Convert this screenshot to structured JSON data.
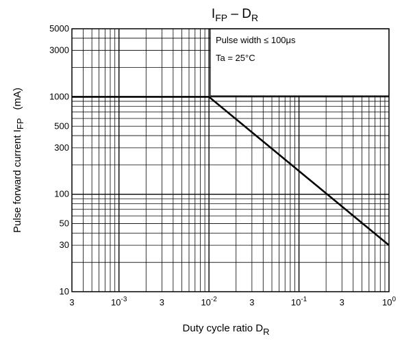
{
  "chart_data": {
    "type": "line",
    "title": "I_FP – D_R",
    "title_main": "I",
    "title_sub": "FP",
    "title_mid": " – D",
    "title_sub2": "R",
    "xlabel_main": "Duty   cycle   ratio   D",
    "xlabel_sub": "R",
    "ylabel_main": "Pulse   forward   current   I",
    "ylabel_sub": "FP",
    "ylabel_unit": "(mA)",
    "x_scale": "log",
    "y_scale": "log",
    "xlim": [
      0.0003,
      1
    ],
    "ylim": [
      10,
      5000
    ],
    "grid": true,
    "x_ticks": [
      {
        "value": 0.0003,
        "base": "3",
        "exp": ""
      },
      {
        "value": 0.001,
        "base": "10",
        "exp": "-3"
      },
      {
        "value": 0.003,
        "base": "3",
        "exp": ""
      },
      {
        "value": 0.01,
        "base": "10",
        "exp": "-2"
      },
      {
        "value": 0.03,
        "base": "3",
        "exp": ""
      },
      {
        "value": 0.1,
        "base": "10",
        "exp": "-1"
      },
      {
        "value": 0.3,
        "base": "3",
        "exp": ""
      },
      {
        "value": 1,
        "base": "10",
        "exp": "0"
      }
    ],
    "y_ticks": [
      {
        "value": 10,
        "label": "10"
      },
      {
        "value": 30,
        "label": "30"
      },
      {
        "value": 50,
        "label": "50"
      },
      {
        "value": 100,
        "label": "100"
      },
      {
        "value": 300,
        "label": "300"
      },
      {
        "value": 500,
        "label": "500"
      },
      {
        "value": 1000,
        "label": "1000"
      },
      {
        "value": 3000,
        "label": "3000"
      },
      {
        "value": 5000,
        "label": "5000"
      }
    ],
    "annotation_lines": [
      "Pulse width ≤ 100μs",
      "Ta = 25°C"
    ],
    "series": [
      {
        "x": [
          0.0003,
          0.01,
          1
        ],
        "y": [
          1000,
          1000,
          30
        ]
      }
    ]
  }
}
